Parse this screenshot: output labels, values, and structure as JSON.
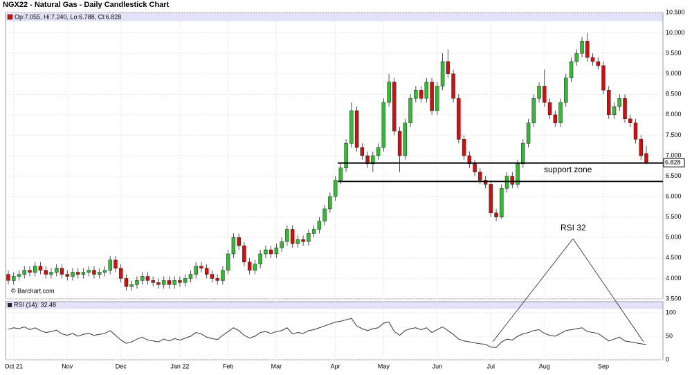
{
  "header": {
    "title": "NGX22 - Natural Gas - Daily Candlestick Chart"
  },
  "chart_data": [
    {
      "type": "candlestick",
      "legend": "Op:7.055, Hi:7.240, Lo:6.788, Cl:6.828",
      "source": "© Barchart.com",
      "categories": [
        null,
        "Oct 21",
        null,
        null,
        null,
        null,
        null,
        null,
        null,
        null,
        null,
        "Nov",
        null,
        null,
        null,
        null,
        null,
        null,
        null,
        null,
        null,
        "Dec",
        null,
        null,
        null,
        null,
        null,
        null,
        null,
        null,
        null,
        null,
        "Jan 22",
        null,
        null,
        null,
        null,
        null,
        null,
        null,
        null,
        "Feb",
        null,
        null,
        null,
        null,
        null,
        null,
        null,
        null,
        "Mar",
        null,
        null,
        null,
        null,
        null,
        null,
        null,
        null,
        null,
        null,
        "Apr",
        null,
        null,
        null,
        null,
        null,
        null,
        null,
        null,
        "May",
        null,
        null,
        null,
        null,
        null,
        null,
        null,
        null,
        null,
        "Jun",
        null,
        null,
        null,
        null,
        null,
        null,
        null,
        null,
        null,
        "Jul",
        null,
        null,
        null,
        null,
        null,
        null,
        null,
        null,
        null,
        "Aug",
        null,
        null,
        null,
        null,
        null,
        null,
        null,
        null,
        null,
        null,
        "Sep",
        null,
        null,
        null,
        null,
        null,
        null,
        null,
        null
      ],
      "open": [
        4.1,
        3.95,
        4.05,
        4.1,
        4.2,
        4.15,
        4.3,
        4.2,
        4.1,
        4.15,
        4.25,
        4.1,
        4.05,
        4.15,
        4.1,
        4.15,
        4.2,
        4.1,
        4.15,
        4.2,
        4.45,
        4.25,
        4.0,
        3.8,
        3.85,
        3.95,
        4.05,
        3.95,
        3.9,
        3.85,
        3.95,
        3.85,
        3.95,
        3.9,
        4.0,
        4.1,
        4.3,
        4.25,
        4.1,
        4.0,
        3.95,
        4.2,
        4.6,
        5.0,
        4.8,
        4.4,
        4.2,
        4.35,
        4.6,
        4.7,
        4.6,
        4.75,
        4.9,
        5.2,
        4.85,
        4.95,
        4.9,
        5.1,
        5.2,
        5.4,
        5.7,
        6.0,
        6.4,
        6.7,
        7.3,
        8.1,
        7.2,
        7.0,
        6.8,
        7.0,
        7.2,
        8.3,
        8.8,
        7.6,
        7.0,
        7.8,
        8.4,
        8.6,
        8.4,
        8.8,
        8.1,
        8.7,
        9.3,
        9.0,
        8.4,
        7.4,
        7.0,
        6.8,
        6.6,
        6.4,
        6.3,
        5.6,
        5.5,
        6.2,
        6.5,
        6.3,
        6.8,
        7.3,
        7.8,
        8.4,
        8.7,
        8.3,
        8.0,
        7.8,
        8.3,
        8.9,
        9.3,
        9.5,
        9.8,
        9.4,
        9.3,
        9.2,
        8.6,
        8.0,
        8.2,
        8.4,
        7.9,
        7.8,
        7.4,
        7.055
      ],
      "high": [
        4.2,
        4.15,
        4.2,
        4.3,
        4.3,
        4.4,
        4.4,
        4.3,
        4.25,
        4.35,
        4.35,
        4.2,
        4.25,
        4.25,
        4.25,
        4.3,
        4.3,
        4.25,
        4.3,
        4.55,
        4.55,
        4.35,
        4.1,
        3.95,
        4.05,
        4.15,
        4.15,
        4.05,
        4.0,
        4.05,
        4.05,
        4.05,
        4.05,
        4.1,
        4.2,
        4.4,
        4.4,
        4.35,
        4.2,
        4.1,
        4.3,
        4.7,
        5.1,
        5.1,
        4.9,
        4.5,
        4.45,
        4.7,
        4.8,
        4.8,
        4.85,
        5.0,
        5.3,
        5.3,
        5.05,
        5.05,
        5.2,
        5.3,
        5.5,
        5.8,
        6.1,
        6.5,
        6.8,
        7.4,
        8.3,
        8.2,
        7.3,
        7.1,
        7.1,
        7.3,
        8.4,
        9.0,
        8.9,
        7.7,
        7.9,
        8.5,
        8.7,
        8.7,
        8.9,
        8.9,
        8.8,
        9.5,
        9.6,
        9.1,
        8.5,
        7.5,
        7.1,
        6.9,
        6.7,
        6.5,
        6.4,
        5.7,
        6.3,
        6.6,
        6.6,
        6.9,
        7.4,
        7.9,
        8.5,
        8.8,
        9.1,
        8.4,
        8.1,
        8.4,
        9.0,
        9.4,
        9.6,
        9.9,
        10.0,
        9.5,
        9.4,
        9.3,
        8.7,
        8.3,
        8.5,
        8.5,
        8.0,
        7.9,
        7.5,
        7.24
      ],
      "low": [
        3.85,
        3.85,
        3.95,
        4.0,
        4.05,
        4.05,
        4.1,
        4.0,
        4.0,
        4.05,
        4.0,
        3.95,
        3.95,
        4.0,
        4.0,
        4.05,
        4.0,
        4.0,
        4.05,
        4.1,
        4.15,
        3.9,
        3.7,
        3.7,
        3.75,
        3.85,
        3.85,
        3.8,
        3.75,
        3.75,
        3.75,
        3.75,
        3.8,
        3.8,
        3.9,
        4.0,
        4.15,
        4.0,
        3.9,
        3.85,
        3.85,
        4.1,
        4.5,
        4.7,
        4.3,
        4.1,
        4.1,
        4.25,
        4.5,
        4.5,
        4.5,
        4.65,
        4.8,
        4.75,
        4.75,
        4.8,
        4.8,
        5.0,
        5.1,
        5.3,
        5.6,
        5.9,
        6.3,
        6.6,
        7.2,
        7.1,
        6.9,
        6.7,
        6.6,
        6.9,
        7.1,
        8.2,
        7.5,
        6.6,
        6.9,
        7.7,
        8.3,
        8.3,
        8.3,
        8.0,
        8.0,
        8.6,
        8.9,
        8.3,
        7.3,
        6.9,
        6.7,
        6.5,
        6.3,
        6.2,
        5.5,
        5.4,
        5.45,
        6.1,
        6.2,
        6.2,
        6.7,
        7.2,
        7.7,
        8.3,
        8.2,
        7.9,
        7.7,
        7.7,
        8.2,
        8.8,
        9.2,
        9.4,
        9.3,
        9.2,
        9.1,
        8.5,
        7.9,
        7.9,
        8.1,
        7.8,
        7.7,
        7.3,
        6.9,
        6.788
      ],
      "close": [
        3.95,
        4.05,
        4.1,
        4.2,
        4.15,
        4.3,
        4.2,
        4.1,
        4.15,
        4.25,
        4.1,
        4.05,
        4.15,
        4.1,
        4.15,
        4.2,
        4.1,
        4.15,
        4.2,
        4.45,
        4.25,
        4.0,
        3.8,
        3.85,
        3.95,
        4.05,
        3.95,
        3.9,
        3.85,
        3.95,
        3.85,
        3.95,
        3.9,
        4.0,
        4.1,
        4.3,
        4.25,
        4.1,
        4.0,
        3.95,
        4.2,
        4.6,
        5.0,
        4.8,
        4.4,
        4.2,
        4.35,
        4.6,
        4.7,
        4.6,
        4.75,
        4.9,
        5.2,
        4.85,
        4.95,
        4.9,
        5.1,
        5.2,
        5.4,
        5.7,
        6.0,
        6.4,
        6.7,
        7.3,
        8.1,
        7.2,
        7.0,
        6.8,
        7.0,
        7.2,
        8.3,
        8.8,
        7.6,
        7.0,
        7.8,
        8.4,
        8.6,
        8.4,
        8.8,
        8.1,
        8.7,
        9.3,
        9.0,
        8.4,
        7.4,
        7.0,
        6.8,
        6.6,
        6.4,
        6.3,
        5.6,
        5.5,
        6.2,
        6.5,
        6.3,
        6.8,
        7.3,
        7.8,
        8.4,
        8.7,
        8.3,
        8.0,
        7.8,
        8.3,
        8.9,
        9.3,
        9.5,
        9.8,
        9.4,
        9.3,
        9.2,
        8.6,
        8.0,
        8.2,
        8.4,
        7.9,
        7.8,
        7.4,
        7.0,
        6.828
      ],
      "up_color": "#33bb33",
      "down_color": "#cc1111",
      "ylim": [
        3.5,
        10.5
      ],
      "yticks": [
        {
          "value": 3.5,
          "label": "3.500"
        },
        {
          "value": 4,
          "label": "4.000"
        },
        {
          "value": 4.5,
          "label": "4.500"
        },
        {
          "value": 5,
          "label": "5.000"
        },
        {
          "value": 5.5,
          "label": "5.500"
        },
        {
          "value": 6,
          "label": "6.000"
        },
        {
          "value": 6.5,
          "label": "6.500"
        },
        {
          "value": 7,
          "label": "7.000"
        },
        {
          "value": 7.5,
          "label": "7.500"
        },
        {
          "value": 8,
          "label": "8.000"
        },
        {
          "value": 8.5,
          "label": "8.500"
        },
        {
          "value": 9,
          "label": "9.000"
        },
        {
          "value": 9.5,
          "label": "9.500"
        },
        {
          "value": 10,
          "label": "10.000"
        },
        {
          "value": 10.5,
          "label": "10.500"
        }
      ],
      "hlines": [
        6.82,
        6.37
      ],
      "annotations": [
        "support zone",
        "RSI 32"
      ]
    },
    {
      "type": "line",
      "legend": "RSI (14): 32.48",
      "values": [
        65,
        68,
        66,
        70,
        64,
        68,
        62,
        58,
        60,
        63,
        55,
        52,
        56,
        50,
        54,
        56,
        52,
        54,
        56,
        62,
        52,
        42,
        35,
        38,
        44,
        48,
        42,
        40,
        38,
        44,
        40,
        45,
        42,
        46,
        50,
        58,
        55,
        48,
        45,
        43,
        52,
        60,
        68,
        62,
        52,
        46,
        50,
        58,
        60,
        56,
        60,
        62,
        68,
        55,
        58,
        56,
        62,
        64,
        68,
        72,
        76,
        80,
        82,
        85,
        88,
        72,
        66,
        62,
        66,
        68,
        78,
        80,
        60,
        52,
        62,
        66,
        68,
        64,
        68,
        58,
        64,
        70,
        62,
        54,
        44,
        40,
        38,
        36,
        34,
        33,
        27,
        26,
        38,
        44,
        42,
        50,
        55,
        58,
        62,
        64,
        56,
        52,
        50,
        56,
        62,
        64,
        66,
        68,
        60,
        58,
        56,
        48,
        40,
        44,
        48,
        40,
        38,
        36,
        34,
        32.48
      ],
      "color": "#333333",
      "ylim": [
        0,
        100
      ],
      "yticks": [
        0,
        50,
        100
      ]
    }
  ]
}
